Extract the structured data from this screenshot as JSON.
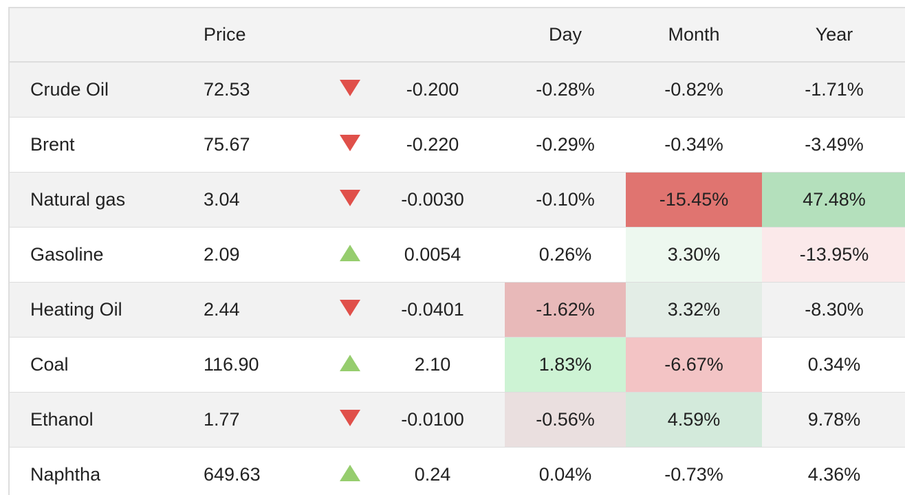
{
  "header": {
    "price": "Price",
    "day": "Day",
    "month": "Month",
    "year": "Year"
  },
  "colors": {
    "down_arrow": "#e0504a",
    "up_arrow": "#96cd6e"
  },
  "rows": [
    {
      "name": "Crude Oil",
      "price": "72.53",
      "direction": "down",
      "change": "-0.200",
      "day": "-0.28%",
      "month": "-0.82%",
      "year": "-1.71%",
      "day_bg": "",
      "month_bg": "",
      "year_bg": ""
    },
    {
      "name": "Brent",
      "price": "75.67",
      "direction": "down",
      "change": "-0.220",
      "day": "-0.29%",
      "month": "-0.34%",
      "year": "-3.49%",
      "day_bg": "",
      "month_bg": "",
      "year_bg": ""
    },
    {
      "name": "Natural gas",
      "price": "3.04",
      "direction": "down",
      "change": "-0.0030",
      "day": "-0.10%",
      "month": "-15.45%",
      "year": "47.48%",
      "day_bg": "",
      "month_bg": "#e07470",
      "year_bg": "#b4e0bc"
    },
    {
      "name": "Gasoline",
      "price": "2.09",
      "direction": "up",
      "change": "0.0054",
      "day": "0.26%",
      "month": "3.30%",
      "year": "-13.95%",
      "day_bg": "",
      "month_bg": "#edf8ef",
      "year_bg": "#fbe9ea"
    },
    {
      "name": "Heating Oil",
      "price": "2.44",
      "direction": "down",
      "change": "-0.0401",
      "day": "-1.62%",
      "month": "3.32%",
      "year": "-8.30%",
      "day_bg": "#e8b9b9",
      "month_bg": "#e3ede6",
      "year_bg": ""
    },
    {
      "name": "Coal",
      "price": "116.90",
      "direction": "up",
      "change": "2.10",
      "day": "1.83%",
      "month": "-6.67%",
      "year": "0.34%",
      "day_bg": "#cdf3d4",
      "month_bg": "#f3c4c5",
      "year_bg": ""
    },
    {
      "name": "Ethanol",
      "price": "1.77",
      "direction": "down",
      "change": "-0.0100",
      "day": "-0.56%",
      "month": "4.59%",
      "year": "9.78%",
      "day_bg": "#eadfdf",
      "month_bg": "#d3eadb",
      "year_bg": ""
    },
    {
      "name": "Naphtha",
      "price": "649.63",
      "direction": "up",
      "change": "0.24",
      "day": "0.04%",
      "month": "-0.73%",
      "year": "4.36%",
      "day_bg": "",
      "month_bg": "",
      "year_bg": ""
    }
  ]
}
